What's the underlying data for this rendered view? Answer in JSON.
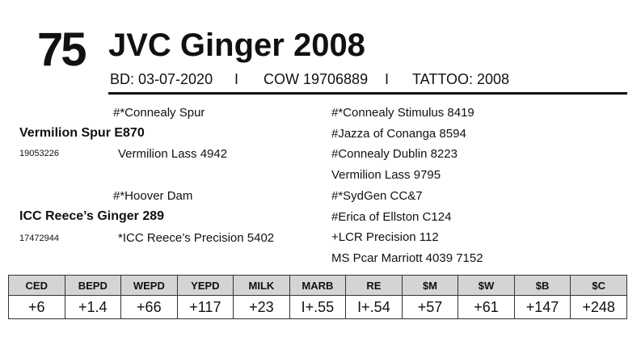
{
  "header": {
    "lot": "75",
    "name": "JVC Ginger 2008",
    "birth_date": "BD: 03-07-2020",
    "separator": "I",
    "cow": "COW 19706889",
    "tattoo": "TATTOO: 2008"
  },
  "pedigree": {
    "sire": {
      "name": "Vermilion Spur E870",
      "reg": "19053226",
      "sire": "#*Connealy Spur",
      "dam": "Vermilion Lass 4942",
      "ancestors": [
        "#*Connealy Stimulus 8419",
        "#Jazza of Conanga 8594",
        "#Connealy Dublin 8223",
        "Vermilion Lass 9795"
      ]
    },
    "dam": {
      "name": "ICC Reece’s Ginger 289",
      "reg": "17472944",
      "sire": "#*Hoover Dam",
      "dam": "*ICC Reece’s Precision 5402",
      "ancestors": [
        "#*SydGen CC&7",
        "#Erica of Ellston C124",
        "+LCR Precision 112",
        "MS Pcar Marriott 4039 7152"
      ]
    }
  },
  "table": {
    "columns": [
      "CED",
      "BEPD",
      "WEPD",
      "YEPD",
      "MILK",
      "MARB",
      "RE",
      "$M",
      "$W",
      "$B",
      "$C"
    ],
    "rows": [
      [
        "+6",
        "+1.4",
        "+66",
        "+117",
        "+23",
        "I+.55",
        "I+.54",
        "+57",
        "+61",
        "+147",
        "+248"
      ]
    ]
  }
}
